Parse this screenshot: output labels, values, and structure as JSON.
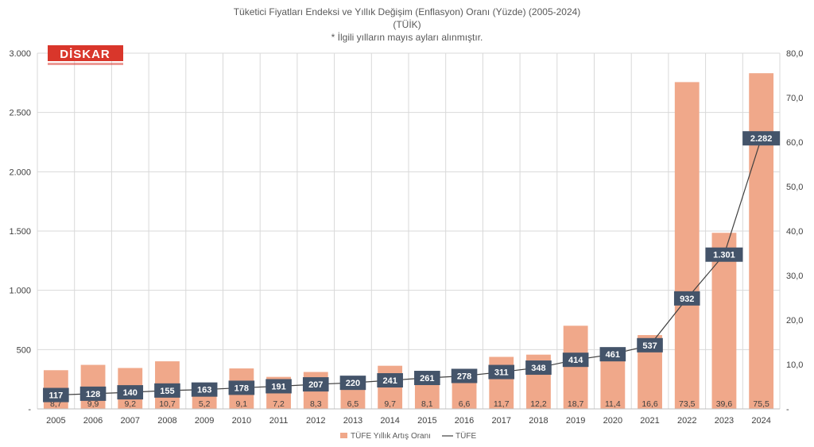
{
  "chart_data": {
    "type": "bar",
    "title_lines": [
      "Tüketici Fiyatları Endeksi ve Yıllık Değişim (Enflasyon) Oranı (Yüzde) (2005-2024)",
      "(TÜİK)",
      "* İlgili yılların mayıs ayları alınmıştır."
    ],
    "categories": [
      "2005",
      "2006",
      "2007",
      "2008",
      "2009",
      "2010",
      "2011",
      "2012",
      "2013",
      "2014",
      "2015",
      "2016",
      "2017",
      "2018",
      "2019",
      "2020",
      "2021",
      "2022",
      "2023",
      "2024"
    ],
    "series": [
      {
        "name": "TÜFE Yıllık Artış Oranı",
        "type": "bar",
        "axis": "right",
        "color": "#f0a88a",
        "values": [
          8.7,
          9.9,
          9.2,
          10.7,
          5.2,
          9.1,
          7.2,
          8.3,
          6.5,
          9.7,
          8.1,
          6.6,
          11.7,
          12.2,
          18.7,
          11.4,
          16.6,
          73.5,
          39.6,
          75.5
        ],
        "labels": [
          "8,7",
          "9,9",
          "9,2",
          "10,7",
          "5,2",
          "9,1",
          "7,2",
          "8,3",
          "6,5",
          "9,7",
          "8,1",
          "6,6",
          "11,7",
          "12,2",
          "18,7",
          "11,4",
          "16,6",
          "73,5",
          "39,6",
          "75,5"
        ]
      },
      {
        "name": "TÜFE",
        "type": "line",
        "axis": "left",
        "color": "#404040",
        "label_bg": "#44546a",
        "values": [
          117,
          128,
          140,
          155,
          163,
          178,
          191,
          207,
          220,
          241,
          261,
          278,
          311,
          348,
          414,
          461,
          537,
          932,
          1301,
          2282
        ],
        "labels": [
          "117",
          "128",
          "140",
          "155",
          "163",
          "178",
          "191",
          "207",
          "220",
          "241",
          "261",
          "278",
          "311",
          "348",
          "414",
          "461",
          "537",
          "932",
          "1.301",
          "2.282"
        ]
      }
    ],
    "left_axis": {
      "range": [
        0,
        3000
      ],
      "ticks": [
        0,
        500,
        1000,
        1500,
        2000,
        2500,
        3000
      ],
      "tick_labels": [
        "-",
        "500",
        "1.000",
        "1.500",
        "2.000",
        "2.500",
        "3.000"
      ]
    },
    "right_axis": {
      "range": [
        0,
        80
      ],
      "ticks": [
        0,
        10,
        20,
        30,
        40,
        50,
        60,
        70,
        80
      ],
      "tick_labels": [
        "-",
        "10,0",
        "20,0",
        "30,0",
        "40,0",
        "50,0",
        "60,0",
        "70,0",
        "80,0"
      ]
    },
    "grid": true,
    "legend_position": "bottom"
  },
  "logo": {
    "text": "DİSKAR",
    "bg_color": "#d9362b"
  }
}
